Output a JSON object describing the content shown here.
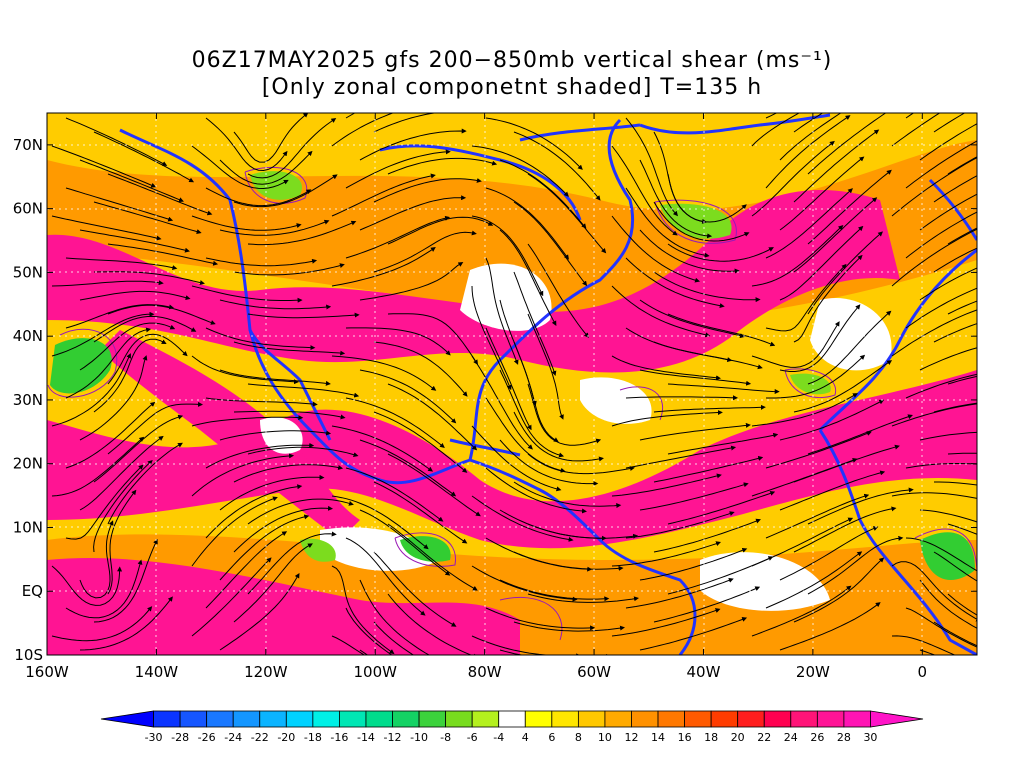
{
  "title": {
    "line1": "06Z17MAY2025 gfs 200−850mb vertical shear (ms⁻¹)",
    "line2": "[Only zonal componetnt shaded] T=135 h"
  },
  "map": {
    "lon_range": [
      -160,
      10
    ],
    "lat_range": [
      -10,
      75
    ],
    "y_axis_labels": [
      "70N",
      "60N",
      "50N",
      "40N",
      "30N",
      "20N",
      "10N",
      "EQ",
      "10S"
    ],
    "x_axis_labels": [
      "160W",
      "140W",
      "120W",
      "100W",
      "80W",
      "60W",
      "40W",
      "20W",
      "0"
    ],
    "y_axis_values": [
      70,
      60,
      50,
      40,
      30,
      20,
      10,
      0,
      -10
    ],
    "x_axis_values": [
      -160,
      -140,
      -120,
      -100,
      -80,
      -60,
      -40,
      -20,
      0
    ]
  },
  "colorbar": {
    "labels": [
      "-30",
      "-28",
      "-26",
      "-24",
      "-22",
      "-20",
      "-18",
      "-16",
      "-14",
      "-12",
      "-10",
      "-8",
      "-6",
      "-4",
      "4",
      "6",
      "8",
      "10",
      "12",
      "14",
      "16",
      "18",
      "20",
      "22",
      "24",
      "26",
      "28",
      "30"
    ],
    "colors": [
      "#0000ff",
      "#0b34ff",
      "#1656ff",
      "#1a78ff",
      "#1496ff",
      "#0bb4ff",
      "#00d2ff",
      "#00f0e6",
      "#00e6b4",
      "#00dc8c",
      "#14d264",
      "#3cd23c",
      "#78dc1e",
      "#b4f01e",
      "#ffffff",
      "#ffff00",
      "#ffe600",
      "#ffc800",
      "#ffaa00",
      "#ff9100",
      "#ff7800",
      "#ff5a00",
      "#ff3c00",
      "#ff1e1e",
      "#ff0050",
      "#ff1478",
      "#ff1496",
      "#ff14b4",
      "#ff14c8"
    ]
  }
}
